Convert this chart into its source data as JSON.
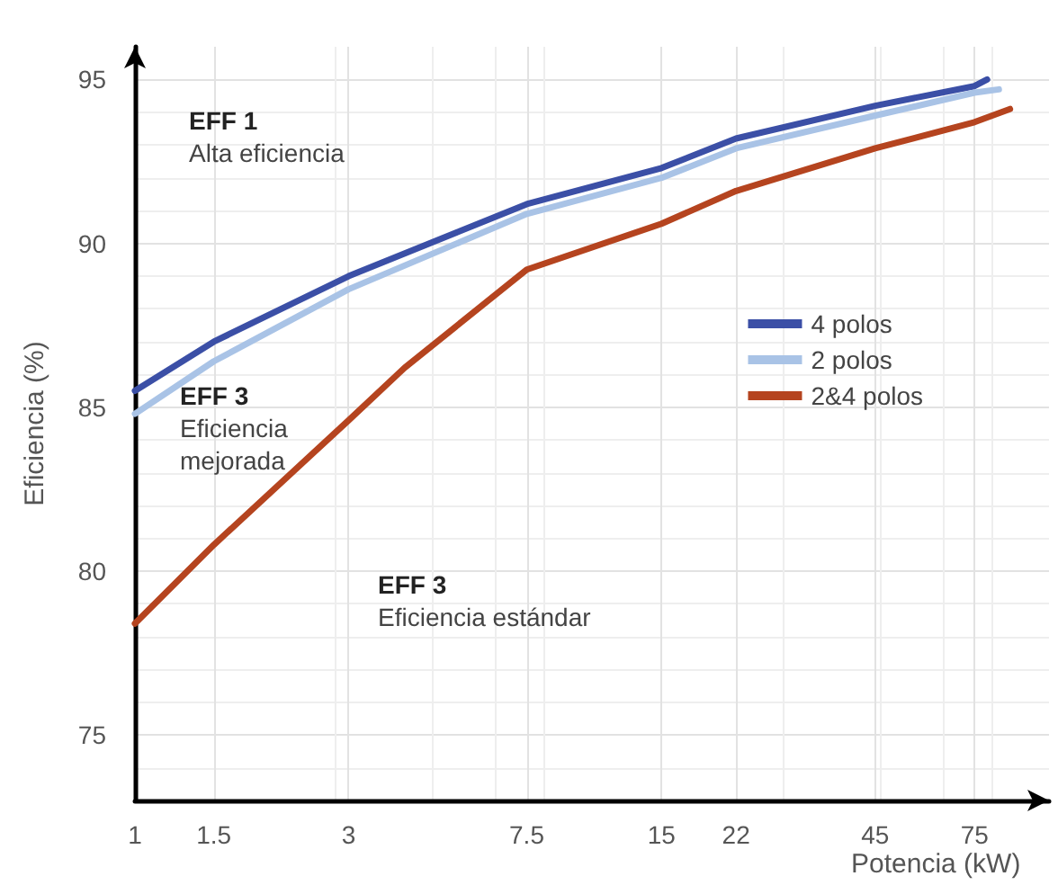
{
  "chart_data": {
    "type": "line",
    "xlabel": "Potencia (kW)",
    "ylabel": "Eficiencia (%)",
    "log": "x",
    "xlim": [
      1,
      110
    ],
    "xticks": [
      1,
      1.5,
      3,
      7.5,
      15,
      22,
      45,
      75
    ],
    "ylim": [
      73,
      96
    ],
    "yticks": [
      75,
      80,
      85,
      90,
      95
    ],
    "grid": true,
    "legend": "right",
    "marker": "none",
    "line_style": "solid",
    "annotations": [
      "EFF 1\nAlta eficiencia",
      "EFF 3\nEficiencia\nmejorada",
      "EFF 3\nEficiencia estándar"
    ],
    "series": [
      {
        "name": "4 polos",
        "color": "#3b4fa6",
        "x": [
          1,
          1.5,
          3,
          7.5,
          15,
          22,
          45,
          75,
          80
        ],
        "values": [
          85.5,
          87.0,
          89.0,
          91.2,
          92.3,
          93.2,
          94.2,
          94.8,
          95.0
        ]
      },
      {
        "name": "2 polos",
        "color": "#a9c3e6",
        "x": [
          1,
          1.5,
          3,
          7.5,
          15,
          22,
          45,
          75,
          85
        ],
        "values": [
          84.8,
          86.4,
          88.6,
          90.9,
          92.0,
          92.9,
          93.9,
          94.6,
          94.7
        ]
      },
      {
        "name": "2&4 polos",
        "color": "#b5441f",
        "x": [
          1,
          1.5,
          3,
          4,
          7.5,
          15,
          22,
          45,
          75,
          90
        ],
        "values": [
          78.4,
          80.8,
          84.6,
          86.2,
          89.2,
          90.6,
          91.6,
          92.9,
          93.7,
          94.1
        ]
      }
    ]
  }
}
